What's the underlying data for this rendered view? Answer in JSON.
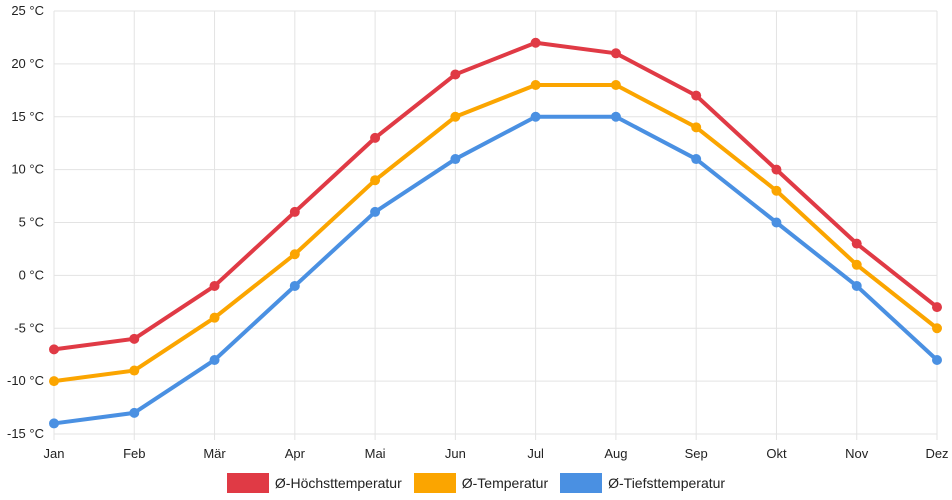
{
  "chart_data": {
    "type": "line",
    "title": "",
    "xlabel": "",
    "ylabel": "",
    "categories": [
      "Jan",
      "Feb",
      "Mär",
      "Apr",
      "Mai",
      "Jun",
      "Jul",
      "Aug",
      "Sep",
      "Okt",
      "Nov",
      "Dez"
    ],
    "ylim": [
      -15,
      25
    ],
    "yticks": [
      25,
      20,
      15,
      10,
      5,
      0,
      -5,
      -10,
      -15
    ],
    "ytick_labels": [
      "25 °C",
      "20 °C",
      "15 °C",
      "10 °C",
      "5 °C",
      "0 °C",
      "-5 °C",
      "-10 °C",
      "-15 °C"
    ],
    "grid": true,
    "legend_position": "bottom-center",
    "series": [
      {
        "name": "Ø-Höchsttemperatur",
        "color": "#e03a45",
        "values": [
          -7,
          -6,
          -1,
          6,
          13,
          19,
          22,
          21,
          17,
          10,
          3,
          -3
        ]
      },
      {
        "name": "Ø-Temperatur",
        "color": "#fba500",
        "values": [
          -10,
          -9,
          -4,
          2,
          9,
          15,
          18,
          18,
          14,
          8,
          1,
          -5
        ]
      },
      {
        "name": "Ø-Tiefsttemperatur",
        "color": "#4a90e2",
        "values": [
          -14,
          -13,
          -8,
          -1,
          6,
          11,
          15,
          15,
          11,
          5,
          -1,
          -8
        ]
      }
    ]
  }
}
